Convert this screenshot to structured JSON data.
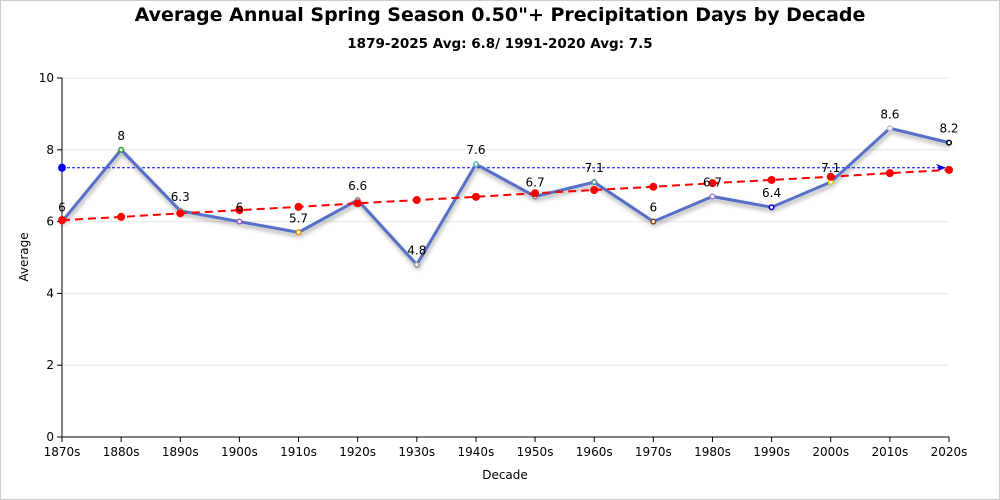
{
  "chart_data": {
    "type": "line",
    "title": "Average Annual Spring Season 0.50\"+ Precipitation Days by Decade",
    "subtitle": "1879-2025 Avg: 6.8/ 1991-2020 Avg: 7.5",
    "xlabel": "Decade",
    "ylabel": "Average",
    "ylim": [
      0,
      10
    ],
    "yticks": [
      0,
      2,
      4,
      6,
      8,
      10
    ],
    "grid": true,
    "categories": [
      "1870s",
      "1880s",
      "1890s",
      "1900s",
      "1910s",
      "1920s",
      "1930s",
      "1940s",
      "1950s",
      "1960s",
      "1970s",
      "1980s",
      "1990s",
      "2000s",
      "2010s",
      "2020s"
    ],
    "series": [
      {
        "values": [
          6,
          8,
          6.3,
          6,
          5.7,
          6.6,
          4.8,
          7.6,
          6.7,
          7.1,
          6,
          6.7,
          6.4,
          7.1,
          8.6,
          8.2
        ],
        "data_labels": [
          "6",
          "8",
          "6.3",
          "6",
          "5.7",
          "6.6",
          "4.8",
          "7.6",
          "6.7",
          "7.1",
          "6",
          "6.7",
          "6.4",
          "7.1",
          "8.6",
          "8.2"
        ],
        "color": "#5470c6",
        "marker_colors": [
          "#e74c3c",
          "#2ca02c",
          "#888888",
          "#9b59b6",
          "#e69500",
          "#888888",
          "#999999",
          "#5ab4ac",
          "#888888",
          "#4a90a4",
          "#8b4513",
          "#9b7fd0",
          "#0000cc",
          "#d4d400",
          "#c0c0d0",
          "#000000"
        ]
      },
      {
        "type": "trend",
        "style": "dashed",
        "color": "#ff0000",
        "values": [
          6.04,
          6.13,
          6.23,
          6.32,
          6.41,
          6.51,
          6.6,
          6.69,
          6.79,
          6.88,
          6.97,
          7.07,
          7.16,
          7.25,
          7.35,
          7.44
        ]
      },
      {
        "type": "reference",
        "style": "dotted",
        "color": "#0000ff",
        "value": 7.5
      }
    ]
  }
}
